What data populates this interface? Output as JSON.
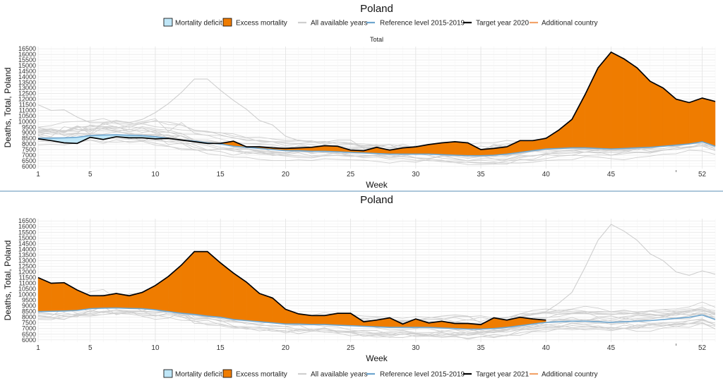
{
  "chart_data": [
    {
      "type": "area",
      "title": "Poland",
      "subtitle": "Total",
      "xlabel": "Week",
      "ylabel": "Deaths, Total, Poland",
      "xticks": [
        1,
        5,
        10,
        15,
        20,
        25,
        30,
        35,
        40,
        45,
        52
      ],
      "yticks": [
        6000,
        6500,
        7000,
        7500,
        8000,
        8500,
        9000,
        9500,
        10000,
        10500,
        11000,
        11500,
        12000,
        12500,
        13000,
        13500,
        14000,
        14500,
        15000,
        15500,
        16000,
        16500
      ],
      "xlim": [
        1,
        53
      ],
      "ylim": [
        5800,
        16700
      ],
      "legend": [
        "Mortality deficit",
        "Excess mortality",
        "All available years",
        "Reference level 2015-2019",
        "Target year 2020",
        "Additional country"
      ],
      "legend_position": "top",
      "grid": true,
      "series": [
        {
          "name": "Reference level 2015-2019",
          "x": [
            1,
            2,
            3,
            4,
            5,
            6,
            7,
            8,
            9,
            10,
            11,
            12,
            13,
            14,
            15,
            16,
            17,
            18,
            19,
            20,
            21,
            22,
            23,
            24,
            25,
            26,
            27,
            28,
            29,
            30,
            31,
            32,
            33,
            34,
            35,
            36,
            37,
            38,
            39,
            40,
            41,
            42,
            43,
            44,
            45,
            46,
            47,
            48,
            49,
            50,
            51,
            52,
            53
          ],
          "values": [
            8500,
            8520,
            8550,
            8600,
            8750,
            8800,
            8820,
            8780,
            8750,
            8650,
            8500,
            8350,
            8250,
            8100,
            8000,
            7800,
            7700,
            7600,
            7500,
            7400,
            7400,
            7350,
            7350,
            7300,
            7250,
            7200,
            7150,
            7100,
            7100,
            7100,
            7100,
            7050,
            7000,
            6950,
            6950,
            7000,
            7100,
            7250,
            7400,
            7550,
            7600,
            7650,
            7650,
            7600,
            7550,
            7600,
            7650,
            7700,
            7800,
            7900,
            8000,
            8200,
            7800
          ]
        },
        {
          "name": "Target year 2020",
          "x": [
            1,
            2,
            3,
            4,
            5,
            6,
            7,
            8,
            9,
            10,
            11,
            12,
            13,
            14,
            15,
            16,
            17,
            18,
            19,
            20,
            21,
            22,
            23,
            24,
            25,
            26,
            27,
            28,
            29,
            30,
            31,
            32,
            33,
            34,
            35,
            36,
            37,
            38,
            39,
            40,
            41,
            42,
            43,
            44,
            45,
            46,
            47,
            48,
            49,
            50,
            51,
            52,
            53
          ],
          "values": [
            8450,
            8300,
            8100,
            8050,
            8600,
            8400,
            8650,
            8550,
            8550,
            8450,
            8500,
            8350,
            8200,
            8050,
            8050,
            8250,
            7750,
            7750,
            7650,
            7600,
            7650,
            7700,
            7850,
            7800,
            7450,
            7400,
            7700,
            7450,
            7650,
            7750,
            7950,
            8100,
            8200,
            8100,
            7500,
            7600,
            7750,
            8300,
            8300,
            8500,
            9250,
            10200,
            12400,
            14800,
            16200,
            15600,
            14800,
            13600,
            13000,
            12000,
            11700,
            12100,
            11800
          ]
        },
        {
          "name": "All available years",
          "x": [
            1,
            2,
            3,
            4,
            5,
            6,
            7,
            8,
            9,
            10,
            11,
            12,
            13,
            14,
            15,
            16,
            17,
            18,
            19,
            20,
            21,
            22,
            23,
            24,
            25,
            26,
            27,
            28,
            29,
            30,
            31,
            32,
            33,
            34,
            35,
            36,
            37,
            38,
            39,
            40,
            41,
            42,
            43,
            44,
            45,
            46,
            47,
            48,
            49,
            50,
            51,
            52,
            53
          ],
          "values": [
            11500,
            11000,
            11050,
            10400,
            9900,
            9900,
            10100,
            9900,
            10200,
            10800,
            11600,
            12600,
            13800,
            13800,
            12800,
            11900,
            11100,
            10100,
            9700,
            8700,
            8300,
            8150,
            8150,
            8350,
            8350,
            7600,
            7750,
            7950,
            7400,
            7850,
            7500,
            7650,
            7450,
            7450,
            7350,
            7950,
            7750,
            8000,
            7850,
            7750,
            7700,
            7600,
            7550,
            7600,
            7550,
            7500,
            7600,
            7700,
            7850,
            7800,
            8000,
            8150,
            7850
          ]
        }
      ]
    },
    {
      "type": "area",
      "title": "Poland",
      "xlabel": "Week",
      "ylabel": "Deaths, Total, Poland",
      "xticks": [
        1,
        5,
        10,
        15,
        20,
        25,
        30,
        35,
        40,
        45,
        52
      ],
      "yticks": [
        6000,
        6500,
        7000,
        7500,
        8000,
        8500,
        9000,
        9500,
        10000,
        10500,
        11000,
        11500,
        12000,
        12500,
        13000,
        13500,
        14000,
        14500,
        15000,
        15500,
        16000,
        16500
      ],
      "xlim": [
        1,
        53
      ],
      "ylim": [
        5800,
        16700
      ],
      "legend": [
        "Mortality deficit",
        "Excess mortality",
        "All available years",
        "Reference level 2015-2019",
        "Target year 2021",
        "Additional country"
      ],
      "legend_position": "bottom",
      "grid": true,
      "series": [
        {
          "name": "Reference level 2015-2019",
          "x": [
            1,
            2,
            3,
            4,
            5,
            6,
            7,
            8,
            9,
            10,
            11,
            12,
            13,
            14,
            15,
            16,
            17,
            18,
            19,
            20,
            21,
            22,
            23,
            24,
            25,
            26,
            27,
            28,
            29,
            30,
            31,
            32,
            33,
            34,
            35,
            36,
            37,
            38,
            39,
            40,
            41,
            42,
            43,
            44,
            45,
            46,
            47,
            48,
            49,
            50,
            51,
            52,
            53
          ],
          "values": [
            8500,
            8520,
            8550,
            8600,
            8750,
            8800,
            8820,
            8780,
            8750,
            8650,
            8500,
            8350,
            8250,
            8100,
            8000,
            7800,
            7700,
            7600,
            7500,
            7400,
            7400,
            7350,
            7350,
            7300,
            7250,
            7200,
            7150,
            7100,
            7100,
            7100,
            7100,
            7050,
            7000,
            6950,
            6950,
            7000,
            7100,
            7250,
            7400,
            7550,
            7600,
            7650,
            7650,
            7600,
            7550,
            7600,
            7650,
            7700,
            7800,
            7900,
            8000,
            8200,
            7800
          ]
        },
        {
          "name": "Target year 2021",
          "x": [
            1,
            2,
            3,
            4,
            5,
            6,
            7,
            8,
            9,
            10,
            11,
            12,
            13,
            14,
            15,
            16,
            17,
            18,
            19,
            20,
            21,
            22,
            23,
            24,
            25,
            26,
            27,
            28,
            29,
            30,
            31,
            32,
            33,
            34,
            35,
            36,
            37,
            38,
            39,
            40
          ],
          "values": [
            11500,
            11000,
            11050,
            10400,
            9900,
            9900,
            10100,
            9900,
            10200,
            10800,
            11600,
            12600,
            13800,
            13800,
            12800,
            11900,
            11100,
            10100,
            9700,
            8700,
            8300,
            8150,
            8150,
            8350,
            8350,
            7600,
            7750,
            7950,
            7400,
            7850,
            7500,
            7650,
            7450,
            7450,
            7350,
            7950,
            7750,
            8000,
            7850,
            7750
          ]
        },
        {
          "name": "All available years",
          "x": [
            1,
            2,
            3,
            4,
            5,
            6,
            7,
            8,
            9,
            10,
            11,
            12,
            13,
            14,
            15,
            16,
            17,
            18,
            19,
            20,
            21,
            22,
            23,
            24,
            25,
            26,
            27,
            28,
            29,
            30,
            31,
            32,
            33,
            34,
            35,
            36,
            37,
            38,
            39,
            40,
            41,
            42,
            43,
            44,
            45,
            46,
            47,
            48,
            49,
            50,
            51,
            52,
            53
          ],
          "values": [
            8450,
            8300,
            8100,
            8050,
            8600,
            8400,
            8650,
            8550,
            8550,
            8450,
            8500,
            8350,
            8200,
            8050,
            8050,
            8250,
            7750,
            7750,
            7650,
            7600,
            7650,
            7700,
            7850,
            7800,
            7450,
            7400,
            7700,
            7450,
            7650,
            7750,
            7950,
            8100,
            8200,
            8100,
            7500,
            7600,
            7750,
            8300,
            8300,
            8500,
            9250,
            10200,
            12400,
            14800,
            16200,
            15600,
            14800,
            13600,
            13000,
            12000,
            11700,
            12100,
            11800
          ]
        }
      ]
    }
  ],
  "colors": {
    "deficit": "#bfe6f7",
    "excess": "#ef7c00",
    "background_years": "#cfcfcf",
    "reference": "#6ea6cf",
    "target": "#000000",
    "additional": "#f3a36a",
    "divider": "#5a8fb5"
  }
}
